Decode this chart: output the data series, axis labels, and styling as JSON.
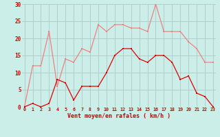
{
  "x": [
    0,
    1,
    2,
    3,
    4,
    5,
    6,
    7,
    8,
    9,
    10,
    11,
    12,
    13,
    14,
    15,
    16,
    17,
    18,
    19,
    20,
    21,
    22,
    23
  ],
  "rafales": [
    0,
    12,
    12,
    22,
    6,
    14,
    13,
    17,
    16,
    24,
    22,
    24,
    24,
    23,
    23,
    22,
    30,
    22,
    22,
    22,
    19,
    17,
    13,
    13
  ],
  "moyen": [
    0,
    1,
    0,
    1,
    8,
    7,
    2,
    6,
    6,
    6,
    10,
    15,
    17,
    17,
    14,
    13,
    15,
    15,
    13,
    8,
    9,
    4,
    3,
    0
  ],
  "line1_color": "#f08080",
  "line2_color": "#dd0000",
  "bg_color": "#cceee8",
  "grid_color": "#b0c8c8",
  "xlabel": "Vent moyen/en rafales ( km/h )",
  "xlabel_color": "#cc0000",
  "tick_color": "#cc0000",
  "ylim": [
    0,
    30
  ],
  "yticks": [
    0,
    5,
    10,
    15,
    20,
    25,
    30
  ]
}
